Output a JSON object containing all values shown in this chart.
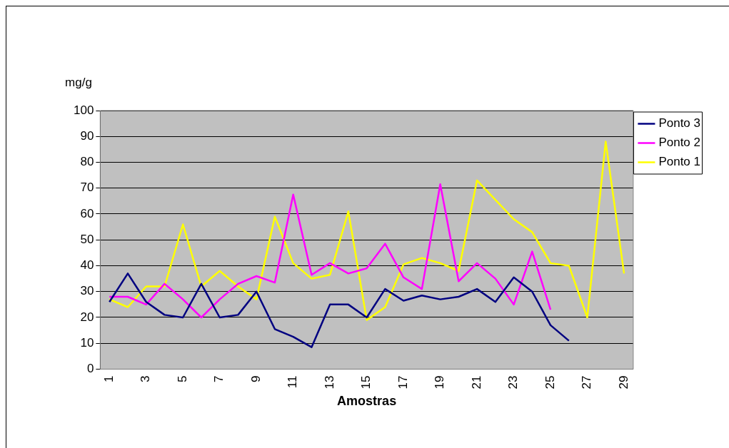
{
  "chart_data": {
    "type": "line",
    "xlabel": "Amostras",
    "ylabel": "mg/g",
    "categories": [
      "1",
      null,
      "3",
      null,
      "5",
      null,
      "7",
      null,
      "9",
      null,
      "11",
      null,
      "13",
      null,
      "15",
      null,
      "17",
      null,
      "19",
      null,
      "21",
      null,
      "23",
      null,
      "25",
      null,
      "27",
      null,
      "29"
    ],
    "series": [
      {
        "name": "Ponto 3",
        "color": "#000080",
        "values": [
          26,
          37,
          26,
          21,
          20,
          33,
          20,
          21,
          30,
          15.5,
          12.5,
          8.5,
          25,
          25,
          20,
          31,
          26.5,
          28.5,
          27,
          28,
          31,
          26,
          35.5,
          30,
          17,
          11,
          null,
          null,
          null
        ]
      },
      {
        "name": "Ponto 2",
        "color": "#ff00ff",
        "values": [
          28,
          28,
          25,
          33,
          27,
          20,
          27,
          33,
          36,
          33.5,
          67.5,
          36.5,
          41,
          37,
          39,
          48.5,
          35.5,
          31,
          71.5,
          34,
          41,
          35,
          25,
          45.5,
          23,
          null,
          null,
          null,
          null
        ]
      },
      {
        "name": "Ponto 1",
        "color": "#ffff00",
        "values": [
          27,
          24,
          32,
          32,
          56,
          32,
          38,
          32,
          27,
          59,
          41,
          35,
          36.5,
          61,
          19,
          24,
          40.5,
          43,
          41,
          38,
          73,
          65.5,
          58,
          53,
          41,
          40,
          20,
          88,
          37
        ]
      }
    ],
    "ylim": [
      0,
      100
    ],
    "yticks": [
      0,
      10,
      20,
      30,
      40,
      50,
      60,
      70,
      80,
      90,
      100
    ],
    "grid": "y",
    "legend": "top right",
    "marker": "none",
    "line_style": "solid"
  }
}
